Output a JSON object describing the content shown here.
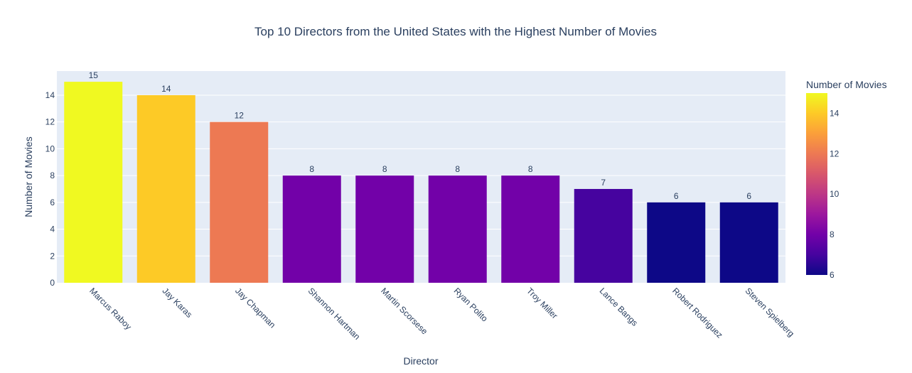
{
  "chart_data": {
    "type": "bar",
    "title": "Top 10 Directors from the United States with the Highest Number of Movies",
    "xlabel": "Director",
    "ylabel": "Number of Movies",
    "categories": [
      "Marcus Raboy",
      "Jay Karas",
      "Jay Chapman",
      "Shannon Hartman",
      "Martin Scorsese",
      "Ryan Polito",
      "Troy Miller",
      "Lance Bangs",
      "Robert Rodriguez",
      "Steven Spielberg"
    ],
    "values": [
      15,
      14,
      12,
      8,
      8,
      8,
      8,
      7,
      6,
      6
    ],
    "data_labels": [
      "15",
      "14",
      "12",
      "8",
      "8",
      "8",
      "8",
      "7",
      "6",
      "6"
    ],
    "ylim": [
      0,
      15.8
    ],
    "y_ticks": [
      0,
      2,
      4,
      6,
      8,
      10,
      12,
      14
    ],
    "grid": true,
    "colorbar": {
      "title": "Number of Movies",
      "range": [
        6,
        15
      ],
      "ticks": [
        6,
        8,
        10,
        12,
        14
      ],
      "colorscale": [
        "#0d0887",
        "#46039f",
        "#7201a8",
        "#9c179e",
        "#bd3786",
        "#d8576b",
        "#ed7953",
        "#fb9f3a",
        "#fdca26",
        "#f0f921"
      ]
    },
    "colors": {
      "plot_bg": "#e5ecf6",
      "grid": "#ffffff",
      "text": "#2a3f5f"
    }
  }
}
